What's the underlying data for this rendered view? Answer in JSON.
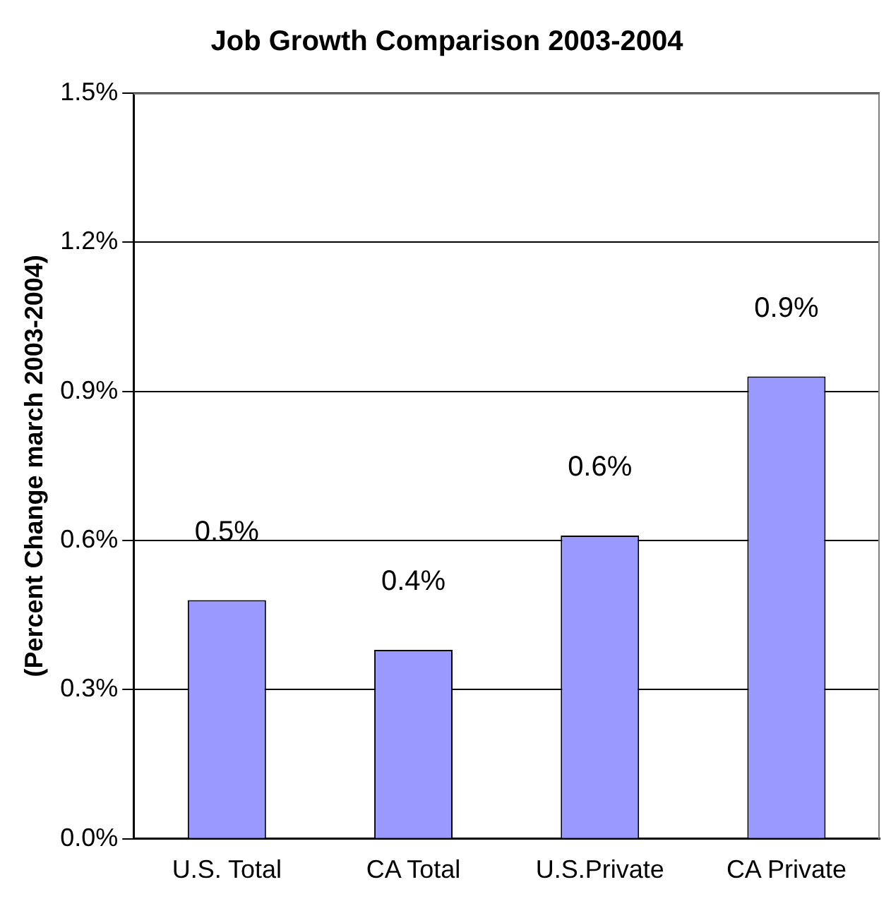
{
  "chart_data": {
    "type": "bar",
    "title": "Job Growth Comparison 2003-2004",
    "ylabel": "(Percent Change march 2003-2004)",
    "categories": [
      "U.S. Total",
      "CA Total",
      "U.S.Private",
      "CA Private"
    ],
    "values": [
      0.48,
      0.38,
      0.61,
      0.93
    ],
    "color": "#9999ff",
    "value_labels": [
      "0.5%",
      "0.4%",
      "0.6%",
      "0.9%"
    ],
    "ylim": [
      0,
      1.5
    ],
    "yticks": [
      {
        "value": 0,
        "label": "0.0%"
      },
      {
        "value": 0.3,
        "label": "0.3%"
      },
      {
        "value": 0.6,
        "label": "0.6%"
      },
      {
        "value": 0.9,
        "label": "0.9%"
      },
      {
        "value": 1.2,
        "label": "1.2%"
      },
      {
        "value": 1.5,
        "label": "1.5%"
      }
    ],
    "grid": "y",
    "legend": false
  }
}
